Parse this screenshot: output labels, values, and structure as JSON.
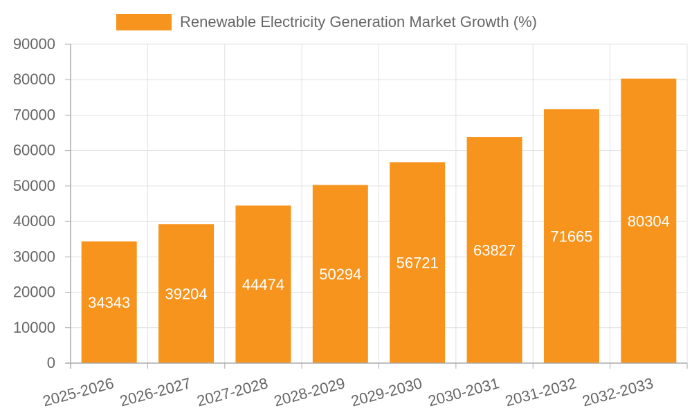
{
  "chart_data": {
    "type": "bar",
    "legend": {
      "label": "Renewable Electricity Generation Market Growth (%)",
      "position": "top-center"
    },
    "categories": [
      "2025-2026",
      "2026-2027",
      "2027-2028",
      "2028-2029",
      "2029-2030",
      "2030-2031",
      "2031-2032",
      "2032-2033"
    ],
    "series": [
      {
        "name": "Renewable Electricity Generation Market Growth (%)",
        "values": [
          34343,
          39204,
          44474,
          50294,
          56721,
          63827,
          71665,
          80304
        ]
      }
    ],
    "data_labels": [
      "34343",
      "39204",
      "44474",
      "50294",
      "56721",
      "63827",
      "71665",
      "80304"
    ],
    "y_ticks": [
      "0",
      "10000",
      "20000",
      "30000",
      "40000",
      "50000",
      "60000",
      "70000",
      "80000",
      "90000"
    ],
    "ylim": [
      0,
      90000
    ],
    "grid": true,
    "colors": {
      "bar": "#f7941d",
      "grid": "#e0e0e0",
      "axis": "#aaaaaa",
      "tick_text": "#666666",
      "data_label": "#ffffff"
    }
  }
}
